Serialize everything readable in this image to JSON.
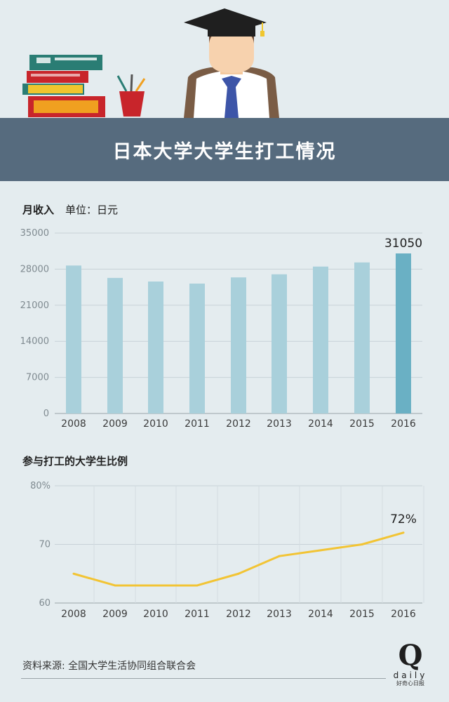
{
  "header": {
    "title": "日本大学大学生打工情况"
  },
  "income_section": {
    "label": "月收入",
    "unit": "单位：日元"
  },
  "ratio_section": {
    "label": "参与打工的大学生比例"
  },
  "source": "资料来源: 全国大学生活协同组合联合会",
  "logo": {
    "mark": "Q",
    "text": "daily",
    "sub": "好奇心日报"
  },
  "colors": {
    "banner": "#566b7e",
    "bar": "#a9d0db",
    "bar_highlight": "#6ab0c4",
    "line": "#f2c434",
    "background": "#e4ecef"
  },
  "chart_data": [
    {
      "type": "bar",
      "categories": [
        "2008",
        "2009",
        "2010",
        "2011",
        "2012",
        "2013",
        "2014",
        "2015",
        "2016"
      ],
      "values": [
        28700,
        26300,
        25600,
        25200,
        26400,
        27000,
        28500,
        29300,
        31050
      ],
      "yticks": [
        "0",
        "7000",
        "14000",
        "21000",
        "28000",
        "35000"
      ],
      "ylim": [
        0,
        35000
      ],
      "highlight_index": 8,
      "data_label": "31050",
      "grid": true
    },
    {
      "type": "line",
      "categories": [
        "2008",
        "2009",
        "2010",
        "2011",
        "2012",
        "2013",
        "2014",
        "2015",
        "2016"
      ],
      "values": [
        65,
        63,
        63,
        63,
        65,
        68,
        69,
        70,
        72
      ],
      "yticks": [
        "60",
        "70",
        "80%"
      ],
      "ylim": [
        60,
        80
      ],
      "data_label": "72%",
      "grid": true
    }
  ]
}
